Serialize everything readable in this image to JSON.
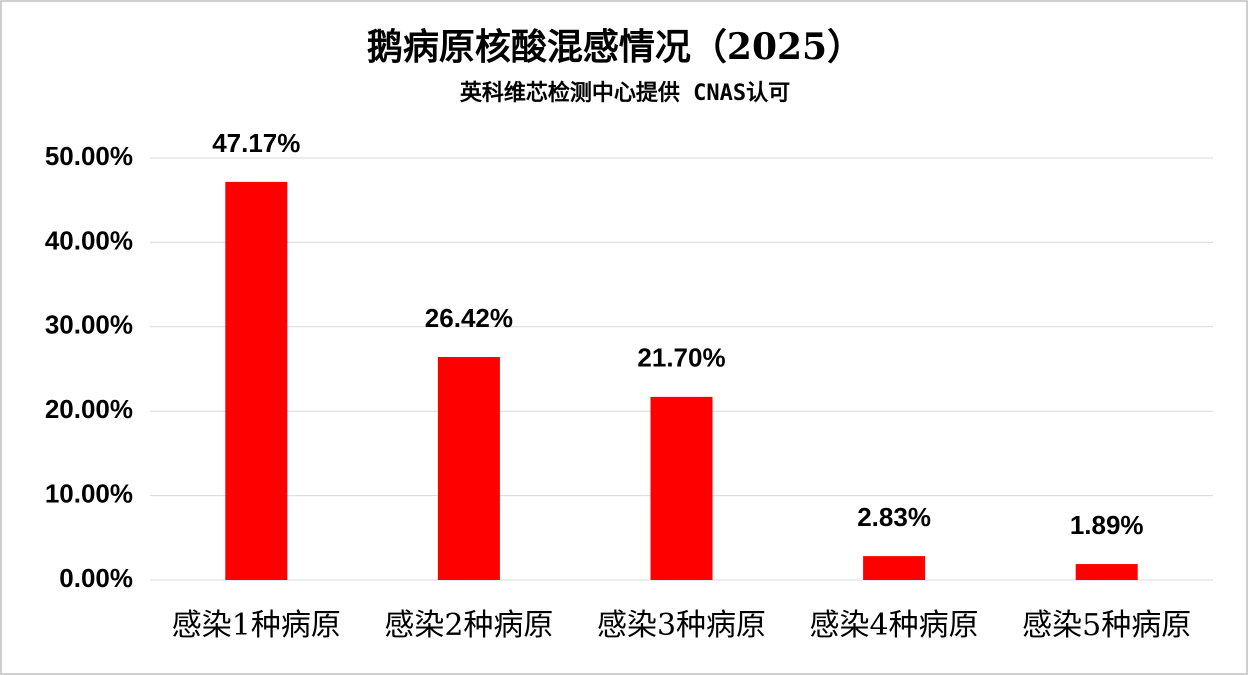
{
  "chart_data": {
    "type": "bar",
    "title": "鹅病原核酸混感情况（2025）",
    "subtitle": "英科维芯检测中心提供 CNAS认可",
    "categories": [
      "感染1种病原",
      "感染2种病原",
      "感染3种病原",
      "感染4种病原",
      "感染5种病原"
    ],
    "values": [
      47.17,
      26.42,
      21.7,
      2.83,
      1.89
    ],
    "value_labels": [
      "47.17%",
      "26.42%",
      "21.70%",
      "2.83%",
      "1.89%"
    ],
    "color": "#ff0000",
    "ylim": [
      0,
      50
    ],
    "yticks": [
      {
        "value": 0,
        "label": "0.00%"
      },
      {
        "value": 10,
        "label": "10.00%"
      },
      {
        "value": 20,
        "label": "20.00%"
      },
      {
        "value": 30,
        "label": "30.00%"
      },
      {
        "value": 40,
        "label": "40.00%"
      },
      {
        "value": 50,
        "label": "50.00%"
      }
    ],
    "grid": true
  }
}
